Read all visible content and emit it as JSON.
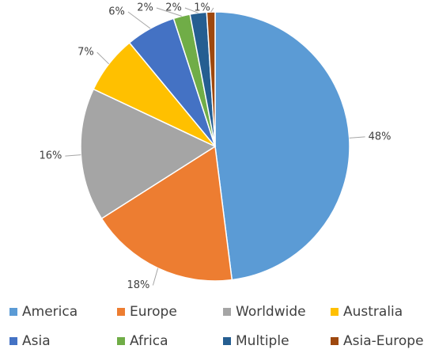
{
  "chart_data": {
    "type": "pie",
    "categories": [
      "America",
      "Europe",
      "Worldwide",
      "Australia",
      "Asia",
      "Africa",
      "Multiple",
      "Asia-Europe"
    ],
    "values": [
      48,
      18,
      16,
      7,
      6,
      2,
      2,
      1
    ],
    "value_labels": [
      "48%",
      "18%",
      "16%",
      "7%",
      "6%",
      "2%",
      "2%",
      "1%"
    ],
    "colors": [
      "#5b9bd5",
      "#ed7d31",
      "#a5a5a5",
      "#ffc000",
      "#4472c4",
      "#70ad47",
      "#255e91",
      "#9e480e"
    ],
    "legend": "bottom"
  }
}
